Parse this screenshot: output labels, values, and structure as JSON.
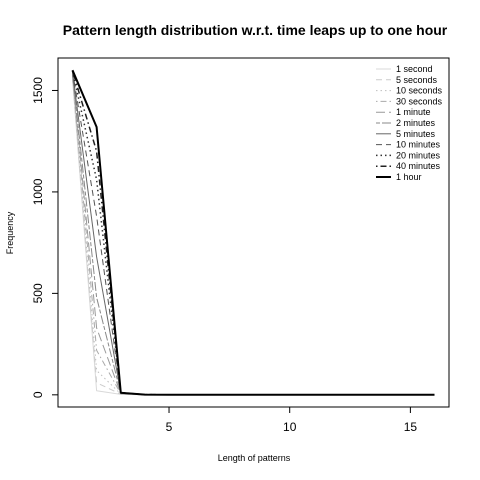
{
  "chart_data": {
    "type": "line",
    "title": "Pattern length distribution w.r.t. time leaps up to one hour",
    "xlabel": "Length of patterns",
    "ylabel": "Frequency",
    "xlim": [
      0.4,
      16.6
    ],
    "ylim": [
      -60,
      1660
    ],
    "xticks": [
      5,
      10,
      15
    ],
    "yticks": [
      0,
      500,
      1000,
      1500
    ],
    "grid": false,
    "legend_position": "top-right",
    "x": [
      1,
      2,
      3,
      4,
      5,
      6,
      7,
      8,
      9,
      10,
      11,
      12,
      13,
      14,
      15,
      16
    ],
    "series": [
      {
        "name": "1 second",
        "color": "#d9d9d9",
        "dash": "solid",
        "width": 1,
        "values": [
          1560,
          20,
          2,
          0,
          0,
          0,
          0,
          0,
          0,
          0,
          0,
          0,
          0,
          0,
          0,
          0
        ]
      },
      {
        "name": "5 seconds",
        "color": "#cccccc",
        "dash": "dash",
        "width": 1,
        "values": [
          1565,
          60,
          3,
          0,
          0,
          0,
          0,
          0,
          0,
          0,
          0,
          0,
          0,
          0,
          0,
          0
        ]
      },
      {
        "name": "10 seconds",
        "color": "#bfbfbf",
        "dash": "dot",
        "width": 1,
        "values": [
          1570,
          120,
          4,
          0,
          0,
          0,
          0,
          0,
          0,
          0,
          0,
          0,
          0,
          0,
          0,
          0
        ]
      },
      {
        "name": "30 seconds",
        "color": "#aaaaaa",
        "dash": "dotdash",
        "width": 1,
        "values": [
          1575,
          220,
          5,
          1,
          0,
          0,
          0,
          0,
          0,
          0,
          0,
          0,
          0,
          0,
          0,
          0
        ]
      },
      {
        "name": "1 minute",
        "color": "#999999",
        "dash": "longdash",
        "width": 1,
        "values": [
          1580,
          330,
          6,
          1,
          0,
          0,
          0,
          0,
          0,
          0,
          0,
          0,
          0,
          0,
          0,
          0
        ]
      },
      {
        "name": "2 minutes",
        "color": "#888888",
        "dash": "twodash",
        "width": 1,
        "values": [
          1585,
          480,
          7,
          1,
          0,
          0,
          0,
          0,
          0,
          0,
          0,
          0,
          0,
          0,
          0,
          0
        ]
      },
      {
        "name": "5 minutes",
        "color": "#666666",
        "dash": "solid",
        "width": 1,
        "values": [
          1590,
          680,
          8,
          1,
          0,
          0,
          0,
          0,
          0,
          0,
          0,
          0,
          0,
          0,
          0,
          0
        ]
      },
      {
        "name": "10 minutes",
        "color": "#555555",
        "dash": "dash",
        "width": 1,
        "values": [
          1593,
          880,
          9,
          1,
          0,
          0,
          0,
          0,
          0,
          0,
          0,
          0,
          0,
          0,
          0,
          0
        ]
      },
      {
        "name": "20 minutes",
        "color": "#333333",
        "dash": "dot",
        "width": 1.5,
        "values": [
          1596,
          1060,
          10,
          1,
          0,
          0,
          0,
          0,
          0,
          0,
          0,
          0,
          0,
          0,
          0,
          0
        ]
      },
      {
        "name": "40 minutes",
        "color": "#222222",
        "dash": "dotdash",
        "width": 1.5,
        "values": [
          1598,
          1200,
          10,
          1,
          0,
          0,
          0,
          0,
          0,
          0,
          0,
          0,
          0,
          0,
          0,
          0
        ]
      },
      {
        "name": "1 hour",
        "color": "#000000",
        "dash": "solid",
        "width": 2,
        "values": [
          1600,
          1320,
          10,
          1,
          0,
          0,
          0,
          0,
          0,
          0,
          0,
          0,
          0,
          0,
          0,
          0
        ]
      }
    ]
  }
}
